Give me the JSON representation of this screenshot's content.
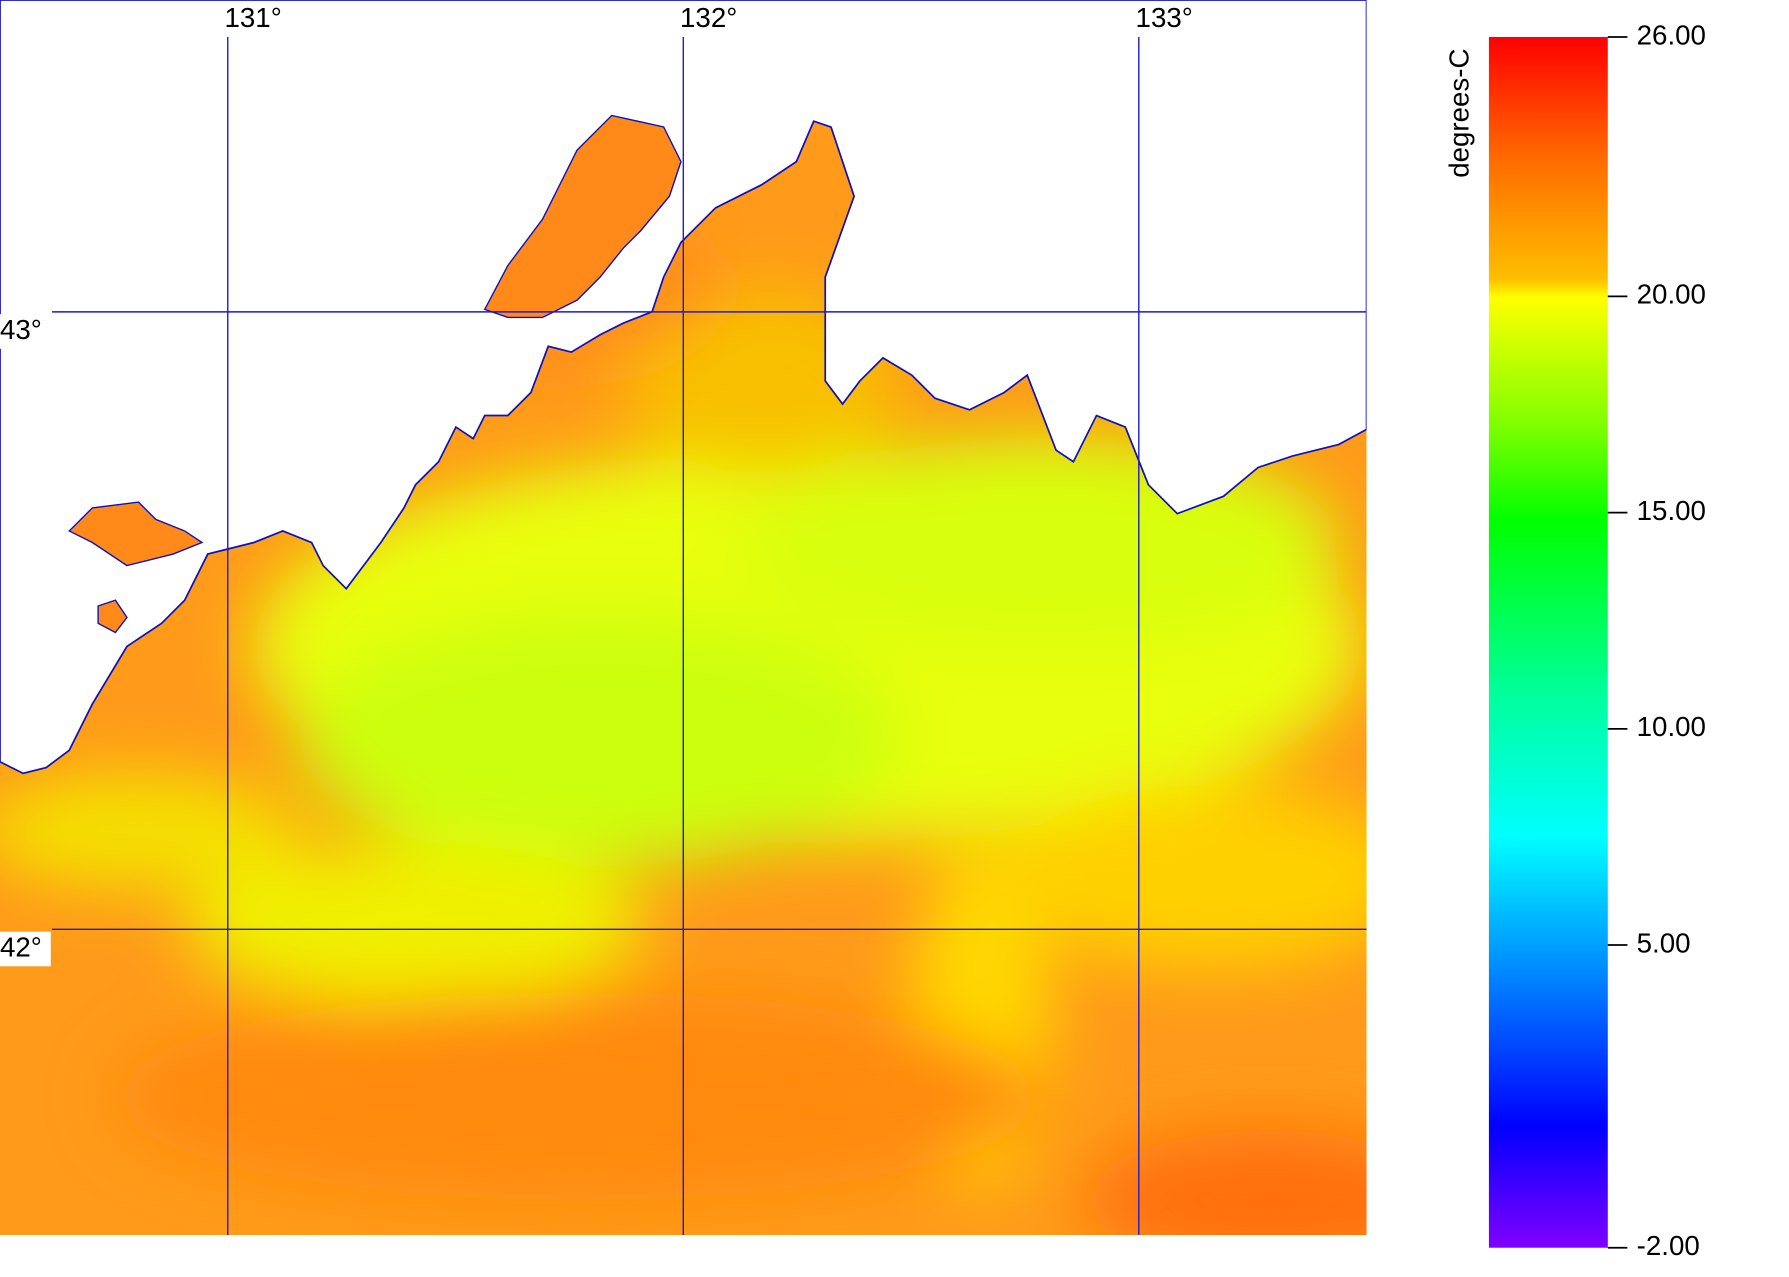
{
  "map": {
    "xlim": [
      130.5,
      133.5
    ],
    "ylim": [
      41.505,
      43.505
    ],
    "lon_ticks": [
      {
        "value": 131,
        "label": "131°"
      },
      {
        "value": 132,
        "label": "132°"
      },
      {
        "value": 133,
        "label": "133°"
      }
    ],
    "lat_ticks": [
      {
        "value": 43,
        "label": "43°"
      },
      {
        "value": 42,
        "label": "42°"
      }
    ]
  },
  "colorbar": {
    "label": "degrees-C",
    "range": [
      -2,
      26
    ],
    "ticks": [
      {
        "value": 26,
        "label": "26.00"
      },
      {
        "value": 20,
        "label": "20.00"
      },
      {
        "value": 15,
        "label": "15.00"
      },
      {
        "value": 10,
        "label": "10.00"
      },
      {
        "value": 5,
        "label": "5.00"
      },
      {
        "value": -2,
        "label": "-2.00"
      }
    ]
  }
}
